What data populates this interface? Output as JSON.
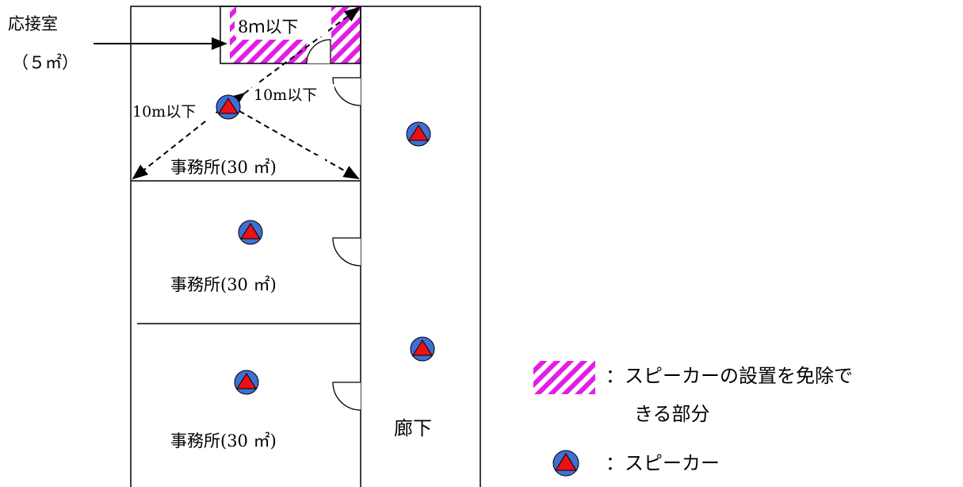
{
  "labels": {
    "reception_room": "応接室",
    "reception_area": "（５㎡）",
    "dist_8m": "8ｍ以下",
    "dist_10m_a": "10m以下",
    "dist_10m_b": "10m以下",
    "office_top": "事務所(30 ㎡)",
    "office_middle": "事務所(30 ㎡)",
    "office_bottom": "事務所(30 ㎡)",
    "corridor": "廊下"
  },
  "legend": {
    "exempt_line1": "：スピーカーの設置を免除で",
    "exempt_line2": "きる部分",
    "speaker": "：スピーカー"
  },
  "colors": {
    "hatch": "#e21ee6",
    "speaker_circle": "#3f6fd4",
    "speaker_triangle": "#ee1111"
  }
}
